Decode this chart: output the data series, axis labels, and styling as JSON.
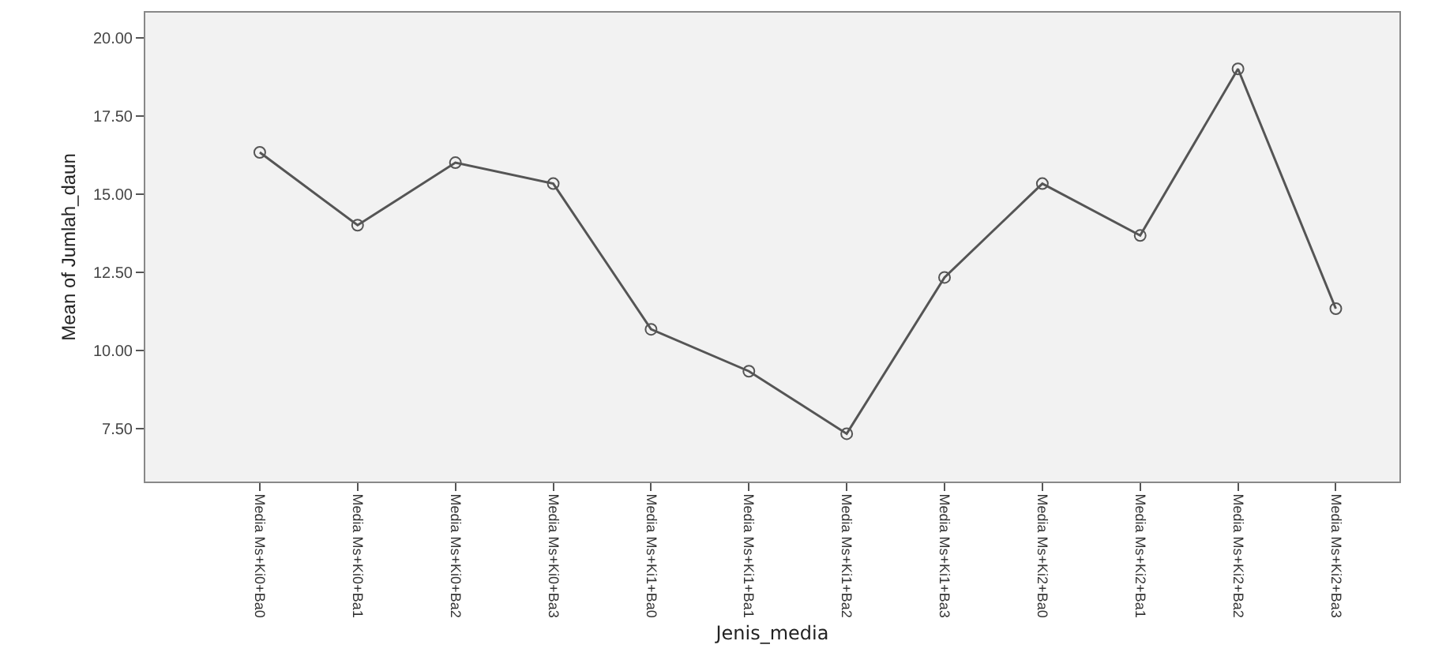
{
  "chart_data": {
    "type": "line",
    "xlabel": "Jenis_media",
    "ylabel": "Mean of Jumlah_daun",
    "categories": [
      "Media Ms+Ki0+Ba0",
      "Media Ms+Ki0+Ba1",
      "Media Ms+Ki0+Ba2",
      "Media Ms+Ki0+Ba3",
      "Media Ms+Ki1+Ba0",
      "Media Ms+Ki1+Ba1",
      "Media Ms+Ki1+Ba2",
      "Media Ms+Ki1+Ba3",
      "Media Ms+Ki2+Ba0",
      "Media Ms+Ki2+Ba1",
      "Media Ms+Ki2+Ba2",
      "Media Ms+Ki2+Ba3"
    ],
    "series": [
      {
        "color": "#555555",
        "values": [
          16.33,
          14.0,
          16.0,
          15.33,
          10.67,
          9.33,
          7.33,
          12.33,
          15.33,
          13.67,
          19.0,
          11.33
        ]
      }
    ],
    "ylim": [
      5.8,
      20.8
    ],
    "yticks": [
      {
        "value": 7.5,
        "label": "7.50"
      },
      {
        "value": 10,
        "label": "10.00"
      },
      {
        "value": 12.5,
        "label": "12.50"
      },
      {
        "value": 15,
        "label": "15.00"
      },
      {
        "value": 17.5,
        "label": "17.50"
      },
      {
        "value": 20,
        "label": "20.00"
      }
    ],
    "marker": "circle",
    "line_style": "solid",
    "grid": false
  }
}
